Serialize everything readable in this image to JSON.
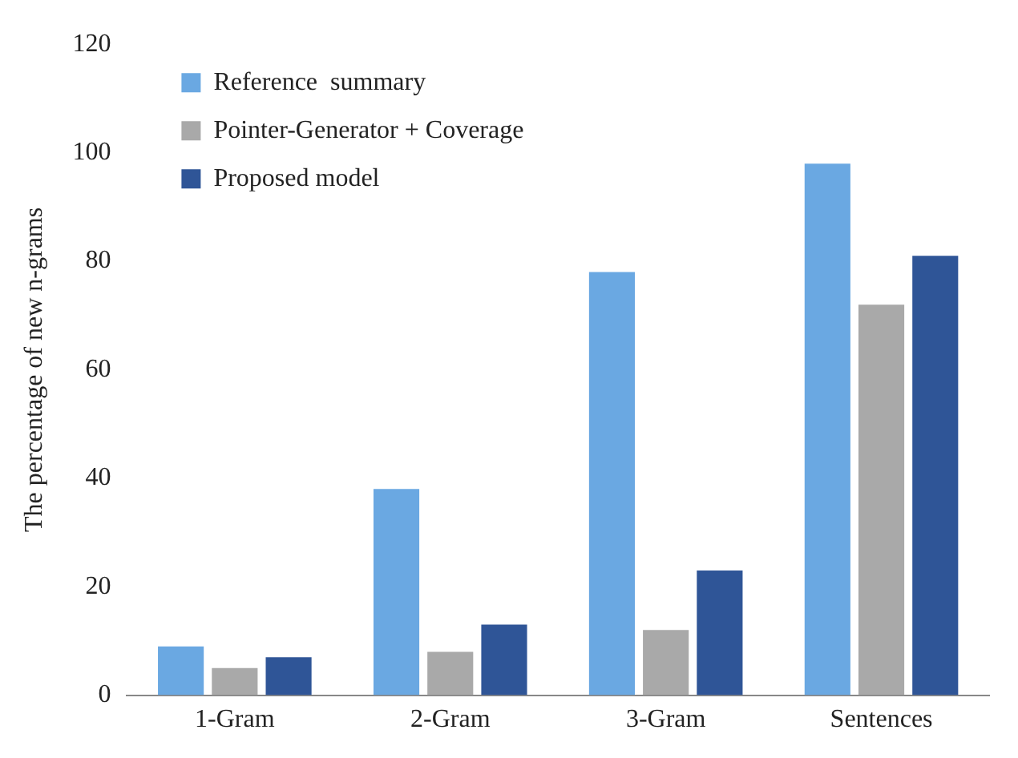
{
  "chart_data": {
    "type": "bar",
    "ylabel": "The percentage of new n-grams",
    "categories": [
      "1-Gram",
      "2-Gram",
      "3-Gram",
      "Sentences"
    ],
    "series": [
      {
        "name": "Reference  summary",
        "color": "#6aa8e2",
        "values": [
          9,
          38,
          78,
          98
        ]
      },
      {
        "name": "Pointer-Generator + Coverage",
        "color": "#a9a9a9",
        "values": [
          5,
          8,
          12,
          72
        ]
      },
      {
        "name": "Proposed model",
        "color": "#2f5597",
        "values": [
          7,
          13,
          23,
          81
        ]
      }
    ],
    "ylim": [
      0,
      120
    ],
    "yticks": [
      0,
      20,
      40,
      60,
      80,
      100,
      120
    ],
    "grid": false,
    "legend": "top left"
  }
}
